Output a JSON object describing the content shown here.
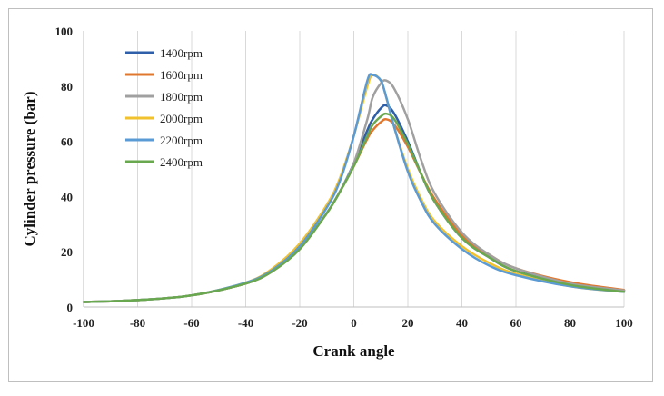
{
  "chart_data": {
    "type": "line",
    "title": "",
    "xlabel": "Crank angle",
    "ylabel": "Cylinder pressure (bar)",
    "xlim": [
      -100,
      100
    ],
    "ylim": [
      0,
      100
    ],
    "xticks": [
      -100,
      -80,
      -60,
      -40,
      -20,
      0,
      20,
      40,
      60,
      80,
      100
    ],
    "yticks": [
      0,
      20,
      40,
      60,
      80,
      100
    ],
    "grid": "vertical",
    "legend_position": "top-left",
    "x": [
      -100,
      -80,
      -60,
      -40,
      -30,
      -20,
      -10,
      -5,
      0,
      5,
      7,
      10,
      12,
      15,
      20,
      25,
      30,
      40,
      50,
      60,
      80,
      100
    ],
    "series": [
      {
        "name": "1400rpm",
        "color": "#2e5fa8",
        "values": [
          1.8,
          2.5,
          4.2,
          8.5,
          13,
          21,
          34,
          42,
          52,
          64,
          68,
          72,
          73,
          70,
          60,
          48,
          38,
          25,
          18,
          13,
          8.5,
          6
        ]
      },
      {
        "name": "1600rpm",
        "color": "#e0772f",
        "values": [
          1.8,
          2.5,
          4.2,
          8.5,
          13,
          21,
          34,
          42,
          51,
          61,
          64,
          67,
          68,
          66,
          58,
          48,
          39,
          26,
          19,
          14,
          9,
          6.2
        ]
      },
      {
        "name": "1800rpm",
        "color": "#a0a0a0",
        "values": [
          1.8,
          2.5,
          4.2,
          8.5,
          13,
          21,
          34,
          42,
          52,
          68,
          76,
          81,
          82,
          79,
          68,
          53,
          41,
          27,
          19,
          14,
          8.5,
          6
        ]
      },
      {
        "name": "2000rpm",
        "color": "#f2c12e",
        "values": [
          1.8,
          2.5,
          4.2,
          8.8,
          14,
          23,
          37,
          47,
          62,
          80,
          84,
          82,
          76,
          65,
          50,
          39,
          31,
          22,
          16,
          12,
          7.5,
          5.5
        ]
      },
      {
        "name": "2200rpm",
        "color": "#5b9bd5",
        "values": [
          1.8,
          2.5,
          4.2,
          8.8,
          13.5,
          22,
          36,
          46,
          62,
          82,
          84,
          82,
          76,
          65,
          49,
          38,
          30,
          21,
          15,
          11.5,
          7.5,
          5.5
        ]
      },
      {
        "name": "2400rpm",
        "color": "#6aa84f",
        "values": [
          1.8,
          2.5,
          4.2,
          8.5,
          13,
          21,
          34,
          42,
          51,
          62,
          66,
          69,
          70,
          68,
          59,
          48,
          38,
          25,
          18,
          13,
          8,
          5.5
        ]
      }
    ]
  }
}
